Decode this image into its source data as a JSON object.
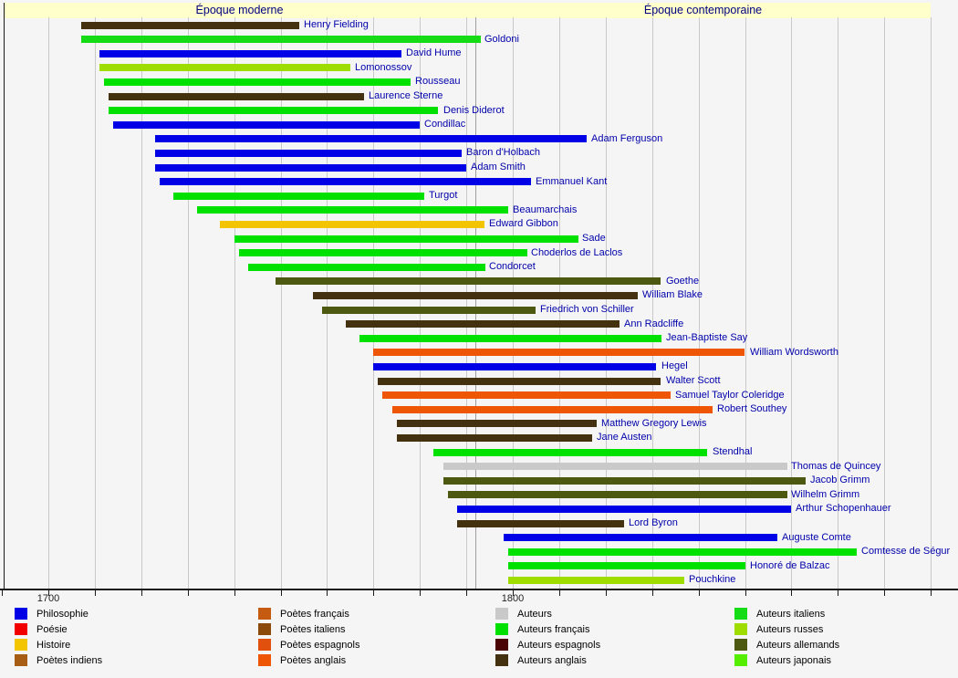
{
  "chart_data": {
    "type": "timeline",
    "title": "",
    "era_bands": [
      {
        "label": "Époque moderne",
        "start": 1690,
        "end": 1792
      },
      {
        "label": "Époque contemporaine",
        "start": 1792,
        "end": 1890
      }
    ],
    "x_axis": {
      "range": [
        1690,
        1890
      ],
      "tick_interval": 10,
      "grid": true,
      "labels": [
        {
          "year": 1700,
          "text": "1700"
        },
        {
          "year": 1800,
          "text": "1800"
        }
      ]
    },
    "categories": {
      "philosophie": {
        "label": "Philosophie",
        "color": "#0000e6"
      },
      "poesie": {
        "label": "Poésie",
        "color": "#f20000"
      },
      "histoire": {
        "label": "Histoire",
        "color": "#f2c500"
      },
      "poetes_indiens": {
        "label": "Poètes indiens",
        "color": "#a85d15"
      },
      "poetes_francais": {
        "label": "Poètes français",
        "color": "#c55a11"
      },
      "poetes_italiens": {
        "label": "Poètes italiens",
        "color": "#8c4a0a"
      },
      "poetes_espagnols": {
        "label": "Poètes espagnols",
        "color": "#e2500e"
      },
      "poetes_anglais": {
        "label": "Poètes anglais",
        "color": "#ee5606"
      },
      "auteurs": {
        "label": "Auteurs",
        "color": "#c9c9c9"
      },
      "auteurs_francais": {
        "label": "Auteurs français",
        "color": "#00e100"
      },
      "auteurs_espagnols": {
        "label": "Auteurs espagnols",
        "color": "#4a0404"
      },
      "auteurs_anglais": {
        "label": "Auteurs anglais",
        "color": "#433110"
      },
      "auteurs_italiens": {
        "label": "Auteurs italiens",
        "color": "#16dc16"
      },
      "auteurs_russes": {
        "label": "Auteurs russes",
        "color": "#9fdd00"
      },
      "auteurs_allemands": {
        "label": "Auteurs allemands",
        "color": "#4d5811"
      },
      "auteurs_japonais": {
        "label": "Auteurs japonais",
        "color": "#55ee00"
      }
    },
    "people": [
      {
        "name": "Henry Fielding",
        "birth": 1707,
        "death": 1754,
        "category": "auteurs_anglais"
      },
      {
        "name": "Goldoni",
        "birth": 1707,
        "death": 1793,
        "category": "auteurs_italiens"
      },
      {
        "name": "David Hume",
        "birth": 1711,
        "death": 1776,
        "category": "philosophie"
      },
      {
        "name": "Lomonossov",
        "birth": 1711,
        "death": 1765,
        "category": "auteurs_russes"
      },
      {
        "name": "Rousseau",
        "birth": 1712,
        "death": 1778,
        "category": "auteurs_francais"
      },
      {
        "name": "Laurence Sterne",
        "birth": 1713,
        "death": 1768,
        "category": "auteurs_anglais"
      },
      {
        "name": "Denis Diderot",
        "birth": 1713,
        "death": 1784,
        "category": "auteurs_francais"
      },
      {
        "name": "Condillac",
        "birth": 1714,
        "death": 1780,
        "category": "philosophie"
      },
      {
        "name": "Adam Ferguson",
        "birth": 1723,
        "death": 1816,
        "category": "philosophie"
      },
      {
        "name": "Baron d'Holbach",
        "birth": 1723,
        "death": 1789,
        "category": "philosophie"
      },
      {
        "name": "Adam Smith",
        "birth": 1723,
        "death": 1790,
        "category": "philosophie"
      },
      {
        "name": "Emmanuel Kant",
        "birth": 1724,
        "death": 1804,
        "category": "philosophie"
      },
      {
        "name": "Turgot",
        "birth": 1727,
        "death": 1781,
        "category": "auteurs_francais"
      },
      {
        "name": "Beaumarchais",
        "birth": 1732,
        "death": 1799,
        "category": "auteurs_francais"
      },
      {
        "name": "Edward Gibbon",
        "birth": 1737,
        "death": 1794,
        "category": "histoire"
      },
      {
        "name": "Sade",
        "birth": 1740,
        "death": 1814,
        "category": "auteurs_francais"
      },
      {
        "name": "Choderlos de Laclos",
        "birth": 1741,
        "death": 1803,
        "category": "auteurs_francais"
      },
      {
        "name": "Condorcet",
        "birth": 1743,
        "death": 1794,
        "category": "auteurs_francais"
      },
      {
        "name": "Goethe",
        "birth": 1749,
        "death": 1832,
        "category": "auteurs_allemands"
      },
      {
        "name": "William Blake",
        "birth": 1757,
        "death": 1827,
        "category": "auteurs_anglais"
      },
      {
        "name": "Friedrich von Schiller",
        "birth": 1759,
        "death": 1805,
        "category": "auteurs_allemands"
      },
      {
        "name": "Ann Radcliffe",
        "birth": 1764,
        "death": 1823,
        "category": "auteurs_anglais"
      },
      {
        "name": "Jean-Baptiste Say",
        "birth": 1767,
        "death": 1832,
        "category": "auteurs_francais"
      },
      {
        "name": "William Wordsworth",
        "birth": 1770,
        "death": 1850,
        "category": "poetes_anglais"
      },
      {
        "name": "Hegel",
        "birth": 1770,
        "death": 1831,
        "category": "philosophie"
      },
      {
        "name": "Walter Scott",
        "birth": 1771,
        "death": 1832,
        "category": "auteurs_anglais"
      },
      {
        "name": "Samuel Taylor Coleridge",
        "birth": 1772,
        "death": 1834,
        "category": "poetes_anglais"
      },
      {
        "name": "Robert Southey",
        "birth": 1774,
        "death": 1843,
        "category": "poetes_anglais"
      },
      {
        "name": "Matthew Gregory Lewis",
        "birth": 1775,
        "death": 1818,
        "category": "auteurs_anglais"
      },
      {
        "name": "Jane Austen",
        "birth": 1775,
        "death": 1817,
        "category": "auteurs_anglais"
      },
      {
        "name": "Stendhal",
        "birth": 1783,
        "death": 1842,
        "category": "auteurs_francais"
      },
      {
        "name": "Thomas de Quincey",
        "birth": 1785,
        "death": 1859,
        "category": "auteurs"
      },
      {
        "name": "Jacob Grimm",
        "birth": 1785,
        "death": 1863,
        "category": "auteurs_allemands"
      },
      {
        "name": "Wilhelm Grimm",
        "birth": 1786,
        "death": 1859,
        "category": "auteurs_allemands"
      },
      {
        "name": "Arthur Schopenhauer",
        "birth": 1788,
        "death": 1860,
        "category": "philosophie"
      },
      {
        "name": "Lord Byron",
        "birth": 1788,
        "death": 1824,
        "category": "auteurs_anglais"
      },
      {
        "name": "Auguste Comte",
        "birth": 1798,
        "death": 1857,
        "category": "philosophie"
      },
      {
        "name": "Comtesse de Ségur",
        "birth": 1799,
        "death": 1874,
        "category": "auteurs_francais"
      },
      {
        "name": "Honoré de Balzac",
        "birth": 1799,
        "death": 1850,
        "category": "auteurs_francais"
      },
      {
        "name": "Pouchkine",
        "birth": 1799,
        "death": 1837,
        "category": "auteurs_russes"
      }
    ],
    "legend_columns": [
      [
        "philosophie",
        "poesie",
        "histoire",
        "poetes_indiens"
      ],
      [
        "poetes_francais",
        "poetes_italiens",
        "poetes_espagnols",
        "poetes_anglais"
      ],
      [
        "auteurs",
        "auteurs_francais",
        "auteurs_espagnols",
        "auteurs_anglais"
      ],
      [
        "auteurs_italiens",
        "auteurs_russes",
        "auteurs_allemands",
        "auteurs_japonais"
      ]
    ]
  }
}
